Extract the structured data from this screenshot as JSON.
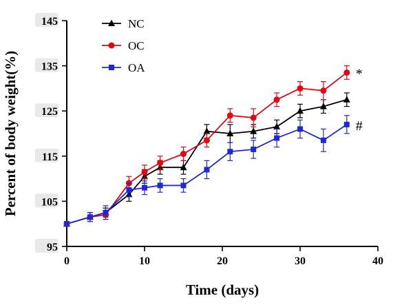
{
  "chart_data": {
    "type": "line",
    "title": "",
    "xlabel": "Time (days)",
    "ylabel": "Percent of body weight(%)",
    "xlim": [
      0,
      40
    ],
    "ylim": [
      95,
      145
    ],
    "xticks": [
      0,
      10,
      20,
      30,
      40
    ],
    "yticks": [
      95,
      105,
      115,
      125,
      135,
      145
    ],
    "grid": false,
    "legend_position": "top-left",
    "x": [
      0,
      3,
      5,
      8,
      10,
      12,
      15,
      18,
      21,
      24,
      27,
      30,
      33,
      36
    ],
    "series": [
      {
        "name": "NC",
        "color": "#000000",
        "marker": "triangle",
        "values": [
          100,
          101.5,
          102.5,
          106.5,
          110.5,
          112.5,
          112.5,
          120.5,
          120,
          120.5,
          121.5,
          125,
          126,
          127.5
        ],
        "errors": [
          0.5,
          1,
          1,
          1.5,
          1.5,
          1.5,
          1.5,
          1.5,
          2,
          1.5,
          1.5,
          1.5,
          1.5,
          1.5
        ],
        "annotation": ""
      },
      {
        "name": "OC",
        "color": "#e30613",
        "marker": "circle",
        "values": [
          100,
          101.5,
          102,
          109,
          111.5,
          113.5,
          115.5,
          118.5,
          124,
          123.5,
          127.5,
          130,
          129.5,
          133.5
        ],
        "errors": [
          0.5,
          1,
          1,
          1.5,
          1.5,
          1.5,
          1.5,
          1.5,
          1.5,
          2,
          1.5,
          1.5,
          2,
          1.5
        ],
        "annotation": "*"
      },
      {
        "name": "OA",
        "color": "#2028d4",
        "marker": "square",
        "values": [
          100,
          101.5,
          102.5,
          107.5,
          108,
          108.5,
          108.5,
          112,
          116,
          116.5,
          119,
          121,
          118.5,
          122
        ],
        "errors": [
          0.5,
          1,
          1.5,
          1.5,
          1.5,
          1.5,
          1.5,
          2,
          2,
          2,
          2,
          2,
          2.5,
          2
        ],
        "annotation": "#"
      }
    ]
  }
}
